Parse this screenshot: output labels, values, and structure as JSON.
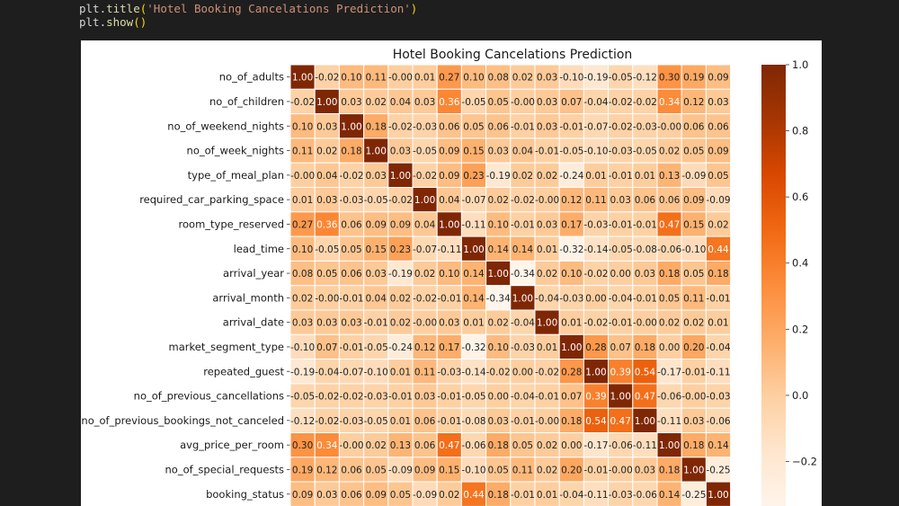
{
  "code": {
    "line1_obj": "plt",
    "line1_fn": "title",
    "line1_arg": "'Hotel Booking Cancelations Prediction'",
    "line2_obj": "plt",
    "line2_fn": "show"
  },
  "chart_data": {
    "type": "heatmap",
    "title": "Hotel Booking Cancelations Prediction",
    "labels": [
      "no_of_adults",
      "no_of_children",
      "no_of_weekend_nights",
      "no_of_week_nights",
      "type_of_meal_plan",
      "required_car_parking_space",
      "room_type_reserved",
      "lead_time",
      "arrival_year",
      "arrival_month",
      "arrival_date",
      "market_segment_type",
      "repeated_guest",
      "no_of_previous_cancellations",
      "no_of_previous_bookings_not_canceled",
      "avg_price_per_room",
      "no_of_special_requests",
      "booking_status"
    ],
    "values": [
      [
        1.0,
        -0.02,
        0.1,
        0.11,
        -0.0,
        0.01,
        0.27,
        0.1,
        0.08,
        0.02,
        0.03,
        -0.1,
        -0.19,
        -0.05,
        -0.12,
        0.3,
        0.19,
        0.09
      ],
      [
        -0.02,
        1.0,
        0.03,
        0.02,
        0.04,
        0.03,
        0.36,
        -0.05,
        0.05,
        -0.0,
        0.03,
        0.07,
        -0.04,
        -0.02,
        -0.02,
        0.34,
        0.12,
        0.03
      ],
      [
        0.1,
        0.03,
        1.0,
        0.18,
        -0.02,
        -0.03,
        0.06,
        0.05,
        0.06,
        -0.01,
        0.03,
        -0.01,
        -0.07,
        -0.02,
        -0.03,
        -0.0,
        0.06,
        0.06
      ],
      [
        0.11,
        0.02,
        0.18,
        1.0,
        0.03,
        -0.05,
        0.09,
        0.15,
        0.03,
        0.04,
        -0.01,
        -0.05,
        -0.1,
        -0.03,
        -0.05,
        0.02,
        0.05,
        0.09
      ],
      [
        -0.0,
        0.04,
        -0.02,
        0.03,
        1.0,
        -0.02,
        0.09,
        0.23,
        -0.19,
        0.02,
        0.02,
        -0.24,
        0.01,
        -0.01,
        0.01,
        0.13,
        -0.09,
        0.05
      ],
      [
        0.01,
        0.03,
        -0.03,
        -0.05,
        -0.02,
        1.0,
        0.04,
        -0.07,
        0.02,
        -0.02,
        -0.0,
        0.12,
        0.11,
        0.03,
        0.06,
        0.06,
        0.09,
        -0.09
      ],
      [
        0.27,
        0.36,
        0.06,
        0.09,
        0.09,
        0.04,
        1.0,
        -0.11,
        0.1,
        -0.01,
        0.03,
        0.17,
        -0.03,
        -0.01,
        -0.01,
        0.47,
        0.15,
        0.02
      ],
      [
        0.1,
        -0.05,
        0.05,
        0.15,
        0.23,
        -0.07,
        -0.11,
        1.0,
        0.14,
        0.14,
        0.01,
        -0.32,
        -0.14,
        -0.05,
        -0.08,
        -0.06,
        -0.1,
        0.44
      ],
      [
        0.08,
        0.05,
        0.06,
        0.03,
        -0.19,
        0.02,
        0.1,
        0.14,
        1.0,
        -0.34,
        0.02,
        0.1,
        -0.02,
        0.0,
        0.03,
        0.18,
        0.05,
        0.18
      ],
      [
        0.02,
        -0.0,
        -0.01,
        0.04,
        0.02,
        -0.02,
        -0.01,
        0.14,
        -0.34,
        1.0,
        -0.04,
        -0.03,
        0.0,
        -0.04,
        -0.01,
        0.05,
        0.11,
        -0.01
      ],
      [
        0.03,
        0.03,
        0.03,
        -0.01,
        0.02,
        -0.0,
        0.03,
        0.01,
        0.02,
        -0.04,
        1.0,
        0.01,
        -0.02,
        -0.01,
        -0.0,
        0.02,
        0.02,
        0.01
      ],
      [
        -0.1,
        0.07,
        -0.01,
        -0.05,
        -0.24,
        0.12,
        0.17,
        -0.32,
        0.1,
        -0.03,
        0.01,
        1.0,
        0.28,
        0.07,
        0.18,
        0.0,
        0.2,
        -0.04
      ],
      [
        -0.19,
        -0.04,
        -0.07,
        -0.1,
        0.01,
        0.11,
        -0.03,
        -0.14,
        -0.02,
        0.0,
        -0.02,
        0.28,
        1.0,
        0.39,
        0.54,
        -0.17,
        -0.01,
        -0.11
      ],
      [
        -0.05,
        -0.02,
        -0.02,
        -0.03,
        -0.01,
        0.03,
        -0.01,
        -0.05,
        0.0,
        -0.04,
        -0.01,
        0.07,
        0.39,
        1.0,
        0.47,
        -0.06,
        -0.0,
        -0.03
      ],
      [
        -0.12,
        -0.02,
        -0.03,
        -0.05,
        0.01,
        0.06,
        -0.01,
        -0.08,
        0.03,
        -0.01,
        -0.0,
        0.18,
        0.54,
        0.47,
        1.0,
        -0.11,
        0.03,
        -0.06
      ],
      [
        0.3,
        0.34,
        -0.0,
        0.02,
        0.13,
        0.06,
        0.47,
        -0.06,
        0.18,
        0.05,
        0.02,
        0.0,
        -0.17,
        -0.06,
        -0.11,
        1.0,
        0.18,
        0.14
      ],
      [
        0.19,
        0.12,
        0.06,
        0.05,
        -0.09,
        0.09,
        0.15,
        -0.1,
        0.05,
        0.11,
        0.02,
        0.2,
        -0.01,
        -0.0,
        0.03,
        0.18,
        1.0,
        -0.25
      ],
      [
        0.09,
        0.03,
        0.06,
        0.09,
        0.05,
        -0.09,
        0.02,
        0.44,
        0.18,
        -0.01,
        0.01,
        -0.04,
        -0.11,
        -0.03,
        -0.06,
        0.14,
        -0.25,
        1.0
      ]
    ],
    "colormap": "Oranges",
    "vmin": -0.34,
    "vmax": 1.0,
    "colorbar_ticks": [
      "1.0",
      "0.8",
      "0.6",
      "0.4",
      "0.2",
      "0.0",
      "−0.2"
    ],
    "colorbar_tick_values": [
      1.0,
      0.8,
      0.6,
      0.4,
      0.2,
      0.0,
      -0.2
    ],
    "annotated": true,
    "grid": "white cell borders"
  }
}
